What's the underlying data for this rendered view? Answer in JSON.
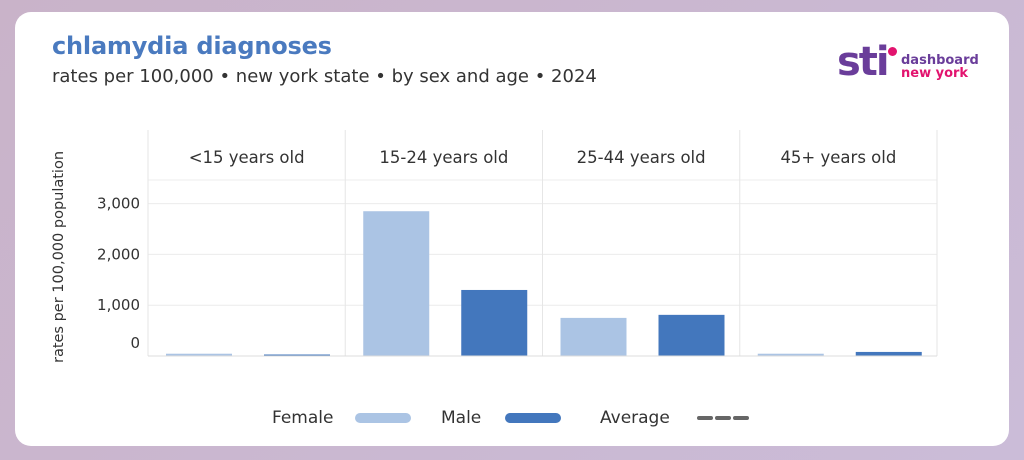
{
  "header": {
    "title": "chlamydia diagnoses",
    "subtitle": "rates per 100,000 • new york state • by sex and age • 2024"
  },
  "logo": {
    "text_main": "sti",
    "text_line1": "dashboard",
    "text_line2": "new york"
  },
  "colors": {
    "female": "#abc4e4",
    "male": "#4377bd",
    "average": "#666666",
    "title": "#4a7abf"
  },
  "legend": {
    "female": "Female",
    "male": "Male",
    "average": "Average"
  },
  "chart_data": {
    "type": "bar",
    "title": "chlamydia diagnoses",
    "subtitle": "rates per 100,000 • new york state • by sex and age • 2024",
    "ylabel": "rates per 100,000 population",
    "ylim": [
      0,
      3500
    ],
    "yticks": [
      0,
      1000,
      2000,
      3000
    ],
    "ytick_labels": [
      "0",
      "1,000",
      "2,000",
      "3,000"
    ],
    "grid": true,
    "legend_position": "bottom-center",
    "facets": [
      "<15 years old",
      "15-24 years old",
      "25-44 years old",
      "45+ years old"
    ],
    "series": [
      {
        "name": "Female",
        "values": [
          45,
          2850,
          750,
          45
        ]
      },
      {
        "name": "Male",
        "values": [
          5,
          1300,
          810,
          80
        ]
      }
    ]
  }
}
